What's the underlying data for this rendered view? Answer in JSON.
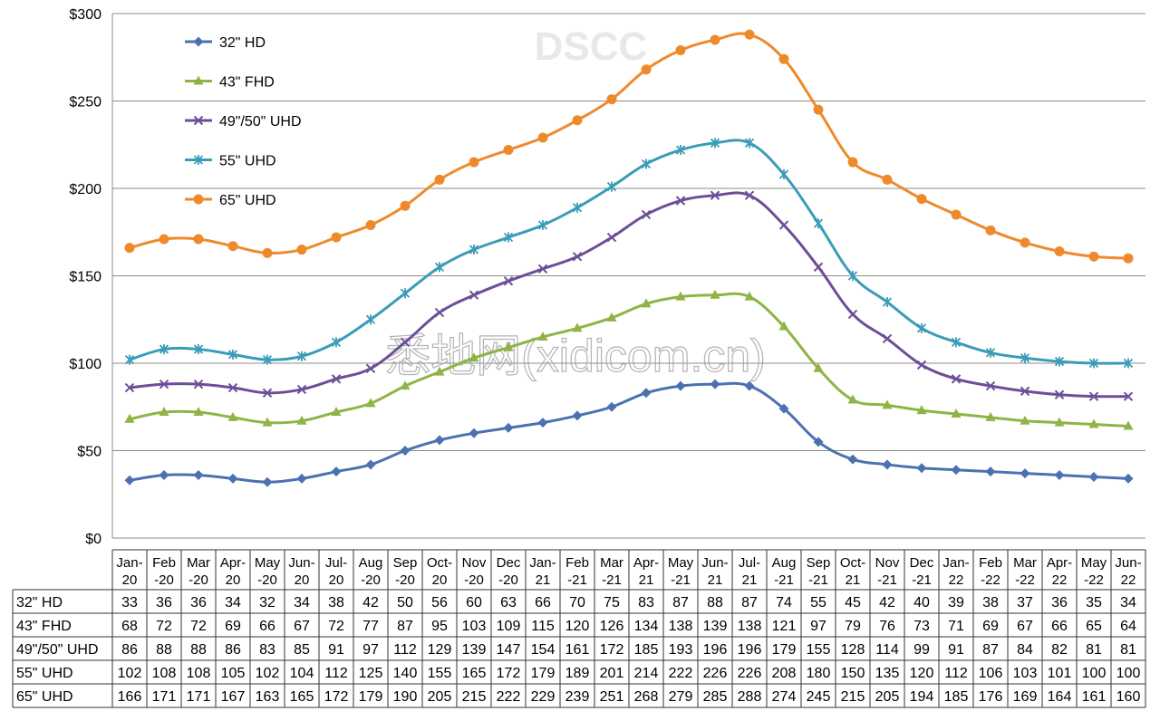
{
  "chart_data": {
    "type": "line",
    "categories": [
      [
        "Jan-",
        "20"
      ],
      [
        "Feb",
        "-20"
      ],
      [
        "Mar",
        "-20"
      ],
      [
        "Apr-",
        "20"
      ],
      [
        "May",
        "-20"
      ],
      [
        "Jun-",
        "20"
      ],
      [
        "Jul-",
        "20"
      ],
      [
        "Aug",
        "-20"
      ],
      [
        "Sep",
        "-20"
      ],
      [
        "Oct-",
        "20"
      ],
      [
        "Nov",
        "-20"
      ],
      [
        "Dec",
        "-20"
      ],
      [
        "Jan-",
        "21"
      ],
      [
        "Feb",
        "-21"
      ],
      [
        "Mar",
        "-21"
      ],
      [
        "Apr-",
        "21"
      ],
      [
        "May",
        "-21"
      ],
      [
        "Jun-",
        "21"
      ],
      [
        "Jul-",
        "21"
      ],
      [
        "Aug",
        "-21"
      ],
      [
        "Sep",
        "-21"
      ],
      [
        "Oct-",
        "21"
      ],
      [
        "Nov",
        "-21"
      ],
      [
        "Dec",
        "-21"
      ],
      [
        "Jan-",
        "22"
      ],
      [
        "Feb",
        "-22"
      ],
      [
        "Mar",
        "-22"
      ],
      [
        "Apr-",
        "22"
      ],
      [
        "May",
        "-22"
      ],
      [
        "Jun-",
        "22"
      ]
    ],
    "y_ticks": [
      "$0",
      "$50",
      "$100",
      "$150",
      "$200",
      "$250",
      "$300"
    ],
    "ylim": [
      0,
      300
    ],
    "grid": true,
    "legend_position": "top-left",
    "watermarks": [
      "DSCC",
      "悉地网(xidicom.cn)"
    ],
    "series": [
      {
        "name": "32\" HD",
        "color": "#4a72b0",
        "marker": "diamond",
        "values": [
          33,
          36,
          36,
          34,
          32,
          34,
          38,
          42,
          50,
          56,
          60,
          63,
          66,
          70,
          75,
          83,
          87,
          88,
          87,
          74,
          55,
          45,
          42,
          40,
          39,
          38,
          37,
          36,
          35,
          34
        ]
      },
      {
        "name": "43\" FHD",
        "color": "#8db545",
        "marker": "triangle",
        "values": [
          68,
          72,
          72,
          69,
          66,
          67,
          72,
          77,
          87,
          95,
          103,
          109,
          115,
          120,
          126,
          134,
          138,
          139,
          138,
          121,
          97,
          79,
          76,
          73,
          71,
          69,
          67,
          66,
          65,
          64
        ]
      },
      {
        "name": "49\"/50\" UHD",
        "color": "#6e4e98",
        "marker": "x",
        "values": [
          86,
          88,
          88,
          86,
          83,
          85,
          91,
          97,
          112,
          129,
          139,
          147,
          154,
          161,
          172,
          185,
          193,
          196,
          196,
          179,
          155,
          128,
          114,
          99,
          91,
          87,
          84,
          82,
          81,
          81
        ]
      },
      {
        "name": "55\" UHD",
        "color": "#3a9cb8",
        "marker": "asterisk",
        "values": [
          102,
          108,
          108,
          105,
          102,
          104,
          112,
          125,
          140,
          155,
          165,
          172,
          179,
          189,
          201,
          214,
          222,
          226,
          226,
          208,
          180,
          150,
          135,
          120,
          112,
          106,
          103,
          101,
          100,
          100
        ]
      },
      {
        "name": "65\" UHD",
        "color": "#ee8a2c",
        "marker": "circle",
        "values": [
          166,
          171,
          171,
          167,
          163,
          165,
          172,
          179,
          190,
          205,
          215,
          222,
          229,
          239,
          251,
          268,
          279,
          285,
          288,
          274,
          245,
          215,
          205,
          194,
          185,
          176,
          169,
          164,
          161,
          160
        ]
      }
    ]
  }
}
